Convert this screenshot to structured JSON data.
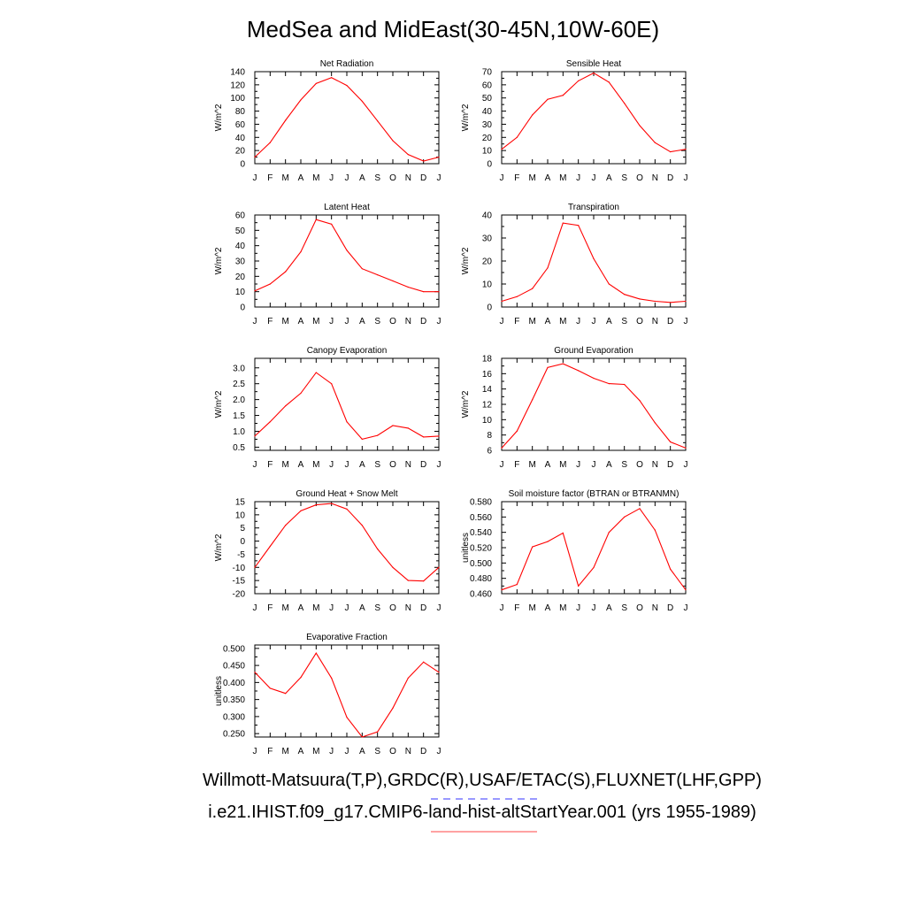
{
  "title": "MedSea and MidEast(30-45N,10W-60E)",
  "credits": {
    "observations": "Willmott-Matsuura(T,P),GRDC(R),USAF/ETAC(S),FLUXNET(LHF,GPP)",
    "model": "i.e21.IHIST.f09_g17.CMIP6-land-hist-altStartYear.001 (yrs 1955-1989)"
  },
  "colors": {
    "model_line": "#ff0000",
    "obs_line": "#0000ff",
    "axis": "#000000"
  },
  "chart_data": [
    {
      "type": "line",
      "title": "Net Radiation",
      "xlabel": "",
      "ylabel": "W/m^2",
      "categories": [
        "J",
        "F",
        "M",
        "A",
        "M",
        "J",
        "J",
        "A",
        "S",
        "O",
        "N",
        "D",
        "J"
      ],
      "ylim": [
        0,
        140
      ],
      "yticks": [
        0,
        20,
        40,
        60,
        80,
        100,
        120,
        140
      ],
      "ytick_labels": [
        "0",
        "20",
        "40",
        "60",
        "80",
        "100",
        "120",
        "140"
      ],
      "values": [
        10,
        32,
        66,
        97,
        122,
        131,
        119,
        95,
        65,
        35,
        14,
        4,
        10
      ]
    },
    {
      "type": "line",
      "title": "Sensible Heat",
      "xlabel": "",
      "ylabel": "W/m^2",
      "categories": [
        "J",
        "F",
        "M",
        "A",
        "M",
        "J",
        "J",
        "A",
        "S",
        "O",
        "N",
        "D",
        "J"
      ],
      "ylim": [
        0,
        70
      ],
      "yticks": [
        0,
        10,
        20,
        30,
        40,
        50,
        60,
        70
      ],
      "ytick_labels": [
        "0",
        "10",
        "20",
        "30",
        "40",
        "50",
        "60",
        "70"
      ],
      "values": [
        11,
        20,
        37,
        49,
        52,
        63,
        69,
        62,
        46,
        29,
        16,
        9,
        11
      ]
    },
    {
      "type": "line",
      "title": "Latent Heat",
      "xlabel": "",
      "ylabel": "W/m^2",
      "categories": [
        "J",
        "F",
        "M",
        "A",
        "M",
        "J",
        "J",
        "A",
        "S",
        "O",
        "N",
        "D",
        "J"
      ],
      "ylim": [
        0,
        60
      ],
      "yticks": [
        0,
        10,
        20,
        30,
        40,
        50,
        60
      ],
      "ytick_labels": [
        "0",
        "10",
        "20",
        "30",
        "40",
        "50",
        "60"
      ],
      "values": [
        10.5,
        15,
        23,
        36,
        57,
        54,
        37,
        25,
        21,
        17,
        13,
        10,
        10
      ]
    },
    {
      "type": "line",
      "title": "Transpiration",
      "xlabel": "",
      "ylabel": "W/m^2",
      "categories": [
        "J",
        "F",
        "M",
        "A",
        "M",
        "J",
        "J",
        "A",
        "S",
        "O",
        "N",
        "D",
        "J"
      ],
      "ylim": [
        0,
        40
      ],
      "yticks": [
        0,
        10,
        20,
        30,
        40
      ],
      "ytick_labels": [
        "0",
        "10",
        "20",
        "30",
        "40"
      ],
      "values": [
        2.5,
        4.5,
        8,
        17,
        36.5,
        35.5,
        21,
        10,
        5.5,
        3.5,
        2.5,
        2,
        2.5
      ]
    },
    {
      "type": "line",
      "title": "Canopy Evaporation",
      "xlabel": "",
      "ylabel": "W/m^2",
      "categories": [
        "J",
        "F",
        "M",
        "A",
        "M",
        "J",
        "J",
        "A",
        "S",
        "O",
        "N",
        "D",
        "J"
      ],
      "ylim": [
        0.4,
        3.3
      ],
      "yticks": [
        0.5,
        1.0,
        1.5,
        2.0,
        2.5,
        3.0
      ],
      "ytick_labels": [
        "0.5",
        "1.0",
        "1.5",
        "2.0",
        "2.5",
        "3.0"
      ],
      "values": [
        0.85,
        1.3,
        1.8,
        2.2,
        2.85,
        2.5,
        1.3,
        0.75,
        0.87,
        1.18,
        1.1,
        0.82,
        0.85
      ]
    },
    {
      "type": "line",
      "title": "Ground Evaporation",
      "xlabel": "",
      "ylabel": "W/m^2",
      "categories": [
        "J",
        "F",
        "M",
        "A",
        "M",
        "J",
        "J",
        "A",
        "S",
        "O",
        "N",
        "D",
        "J"
      ],
      "ylim": [
        6,
        18
      ],
      "yticks": [
        6,
        8,
        10,
        12,
        14,
        16,
        18
      ],
      "ytick_labels": [
        "6",
        "8",
        "10",
        "12",
        "14",
        "16",
        "18"
      ],
      "values": [
        6.3,
        8.5,
        12.6,
        16.8,
        17.3,
        16.4,
        15.4,
        14.7,
        14.6,
        12.5,
        9.6,
        7.1,
        6.3
      ]
    },
    {
      "type": "line",
      "title": "Ground Heat + Snow Melt",
      "xlabel": "",
      "ylabel": "W/m^2",
      "categories": [
        "J",
        "F",
        "M",
        "A",
        "M",
        "J",
        "J",
        "A",
        "S",
        "O",
        "N",
        "D",
        "J"
      ],
      "ylim": [
        -20,
        15
      ],
      "yticks": [
        -20,
        -15,
        -10,
        -5,
        0,
        5,
        10,
        15
      ],
      "ytick_labels": [
        "-20",
        "-15",
        "-10",
        "-5",
        "0",
        "5",
        "10",
        "15"
      ],
      "values": [
        -10,
        -2,
        6,
        11.5,
        13.8,
        14.3,
        12.2,
        6,
        -3,
        -10,
        -15,
        -15.2,
        -10
      ]
    },
    {
      "type": "line",
      "title": "Soil moisture factor (BTRAN or BTRANMN)",
      "xlabel": "",
      "ylabel": "unitless",
      "categories": [
        "J",
        "F",
        "M",
        "A",
        "M",
        "J",
        "J",
        "A",
        "S",
        "O",
        "N",
        "D",
        "J"
      ],
      "ylim": [
        0.46,
        0.58
      ],
      "yticks": [
        0.46,
        0.48,
        0.5,
        0.52,
        0.54,
        0.56,
        0.58
      ],
      "ytick_labels": [
        "0.460",
        "0.480",
        "0.500",
        "0.520",
        "0.540",
        "0.560",
        "0.580"
      ],
      "values": [
        0.465,
        0.472,
        0.521,
        0.528,
        0.539,
        0.47,
        0.494,
        0.54,
        0.56,
        0.571,
        0.543,
        0.492,
        0.465
      ]
    },
    {
      "type": "line",
      "title": "Evaporative Fraction",
      "xlabel": "",
      "ylabel": "unitless",
      "categories": [
        "J",
        "F",
        "M",
        "A",
        "M",
        "J",
        "J",
        "A",
        "S",
        "O",
        "N",
        "D",
        "J"
      ],
      "ylim": [
        0.24,
        0.51
      ],
      "yticks": [
        0.25,
        0.3,
        0.35,
        0.4,
        0.45,
        0.5
      ],
      "ytick_labels": [
        "0.250",
        "0.300",
        "0.350",
        "0.400",
        "0.450",
        "0.500"
      ],
      "values": [
        0.43,
        0.383,
        0.368,
        0.415,
        0.486,
        0.413,
        0.298,
        0.24,
        0.255,
        0.325,
        0.413,
        0.46,
        0.43
      ]
    }
  ]
}
